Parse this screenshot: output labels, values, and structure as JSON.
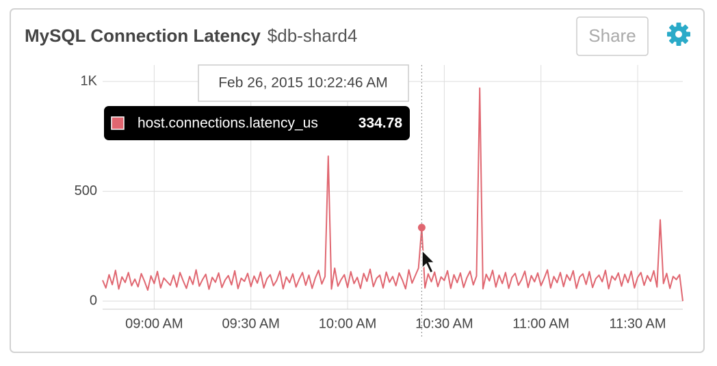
{
  "chart_data": {
    "type": "line",
    "title": "MySQL Connection Latency",
    "subtitle": "$db-shard4",
    "x": [
      "08:44 AM",
      "08:45 AM",
      "08:46 AM",
      "08:47 AM",
      "08:48 AM",
      "08:49 AM",
      "08:50 AM",
      "08:51 AM",
      "08:52 AM",
      "08:53 AM",
      "08:54 AM",
      "08:55 AM",
      "08:56 AM",
      "08:57 AM",
      "08:58 AM",
      "08:59 AM",
      "09:00 AM",
      "09:01 AM",
      "09:02 AM",
      "09:03 AM",
      "09:04 AM",
      "09:05 AM",
      "09:06 AM",
      "09:07 AM",
      "09:08 AM",
      "09:09 AM",
      "09:10 AM",
      "09:11 AM",
      "09:12 AM",
      "09:13 AM",
      "09:14 AM",
      "09:15 AM",
      "09:16 AM",
      "09:17 AM",
      "09:18 AM",
      "09:19 AM",
      "09:20 AM",
      "09:21 AM",
      "09:22 AM",
      "09:23 AM",
      "09:24 AM",
      "09:25 AM",
      "09:26 AM",
      "09:27 AM",
      "09:28 AM",
      "09:29 AM",
      "09:30 AM",
      "09:31 AM",
      "09:32 AM",
      "09:33 AM",
      "09:34 AM",
      "09:35 AM",
      "09:36 AM",
      "09:37 AM",
      "09:38 AM",
      "09:39 AM",
      "09:40 AM",
      "09:41 AM",
      "09:42 AM",
      "09:43 AM",
      "09:44 AM",
      "09:45 AM",
      "09:46 AM",
      "09:47 AM",
      "09:48 AM",
      "09:49 AM",
      "09:50 AM",
      "09:51 AM",
      "09:52 AM",
      "09:53 AM",
      "09:54 AM",
      "09:55 AM",
      "09:56 AM",
      "09:57 AM",
      "09:58 AM",
      "09:59 AM",
      "10:00 AM",
      "10:01 AM",
      "10:02 AM",
      "10:03 AM",
      "10:04 AM",
      "10:05 AM",
      "10:06 AM",
      "10:07 AM",
      "10:08 AM",
      "10:09 AM",
      "10:10 AM",
      "10:11 AM",
      "10:12 AM",
      "10:13 AM",
      "10:14 AM",
      "10:15 AM",
      "10:16 AM",
      "10:17 AM",
      "10:18 AM",
      "10:19 AM",
      "10:20 AM",
      "10:21 AM",
      "10:22 AM",
      "10:23 AM",
      "10:24 AM",
      "10:25 AM",
      "10:26 AM",
      "10:27 AM",
      "10:28 AM",
      "10:29 AM",
      "10:30 AM",
      "10:31 AM",
      "10:32 AM",
      "10:33 AM",
      "10:34 AM",
      "10:35 AM",
      "10:36 AM",
      "10:37 AM",
      "10:38 AM",
      "10:39 AM",
      "10:40 AM",
      "10:41 AM",
      "10:42 AM",
      "10:43 AM",
      "10:44 AM",
      "10:45 AM",
      "10:46 AM",
      "10:47 AM",
      "10:48 AM",
      "10:49 AM",
      "10:50 AM",
      "10:51 AM",
      "10:52 AM",
      "10:53 AM",
      "10:54 AM",
      "10:55 AM",
      "10:56 AM",
      "10:57 AM",
      "10:58 AM",
      "10:59 AM",
      "11:00 AM",
      "11:01 AM",
      "11:02 AM",
      "11:03 AM",
      "11:04 AM",
      "11:05 AM",
      "11:06 AM",
      "11:07 AM",
      "11:08 AM",
      "11:09 AM",
      "11:10 AM",
      "11:11 AM",
      "11:12 AM",
      "11:13 AM",
      "11:14 AM",
      "11:15 AM",
      "11:16 AM",
      "11:17 AM",
      "11:18 AM",
      "11:19 AM",
      "11:20 AM",
      "11:21 AM",
      "11:22 AM",
      "11:23 AM",
      "11:24 AM",
      "11:25 AM",
      "11:26 AM",
      "11:27 AM",
      "11:28 AM",
      "11:29 AM",
      "11:30 AM",
      "11:31 AM",
      "11:32 AM",
      "11:33 AM",
      "11:34 AM",
      "11:35 AM",
      "11:36 AM",
      "11:37 AM",
      "11:38 AM",
      "11:39 AM",
      "11:40 AM",
      "11:41 AM",
      "11:42 AM",
      "11:43 AM",
      "11:44 AM"
    ],
    "series": [
      {
        "name": "host.connections.latency_us",
        "color": "#e06670",
        "values": [
          95,
          60,
          120,
          75,
          140,
          55,
          110,
          85,
          130,
          70,
          100,
          65,
          125,
          90,
          50,
          115,
          80,
          135,
          60,
          105,
          88,
          72,
          118,
          64,
          130,
          92,
          58,
          112,
          76,
          142,
          68,
          98,
          122,
          54,
          108,
          86,
          128,
          62,
          96,
          116,
          74,
          138,
          57,
          104,
          90,
          126,
          66,
          114,
          82,
          132,
          60,
          102,
          120,
          70,
          94,
          136,
          56,
          110,
          84,
          124,
          64,
          100,
          130,
          72,
          118,
          58,
          106,
          140,
          78,
          112,
          660,
          55,
          150,
          68,
          98,
          120,
          62,
          134,
          80,
          108,
          58,
          126,
          90,
          145,
          66,
          104,
          118,
          60,
          132,
          86,
          112,
          70,
          128,
          96,
          56,
          142,
          82,
          116,
          150,
          334.78,
          60,
          124,
          88,
          132,
          66,
          110,
          94,
          138,
          58,
          120,
          84,
          128,
          62,
          106,
          136,
          74,
          114,
          970,
          56,
          122,
          92,
          140,
          64,
          118,
          80,
          130,
          58,
          108,
          126,
          72,
          98,
          136,
          62,
          116,
          88,
          128,
          70,
          104,
          142,
          60,
          112,
          84,
          130,
          66,
          120,
          94,
          138,
          58,
          110,
          124,
          76,
          134,
          62,
          102,
          118,
          88,
          140,
          56,
          114,
          96,
          128,
          68,
          122,
          84,
          136,
          60,
          108,
          130,
          72,
          116,
          90,
          138,
          64,
          370,
          80,
          126,
          58,
          112,
          98,
          120,
          0
        ]
      }
    ],
    "xlim": [
      "08:44 AM",
      "11:44 AM"
    ],
    "xticks": [
      "09:00 AM",
      "09:30 AM",
      "10:00 AM",
      "10:30 AM",
      "11:00 AM",
      "11:30 AM"
    ],
    "ylim": [
      -37,
      1075
    ],
    "yticks": [
      0,
      500,
      {
        "value": 1000,
        "label": "1K"
      }
    ],
    "grid": true
  },
  "share_button": "Share",
  "tooltip_time": "Feb 26, 2015 10:22:46 AM"
}
